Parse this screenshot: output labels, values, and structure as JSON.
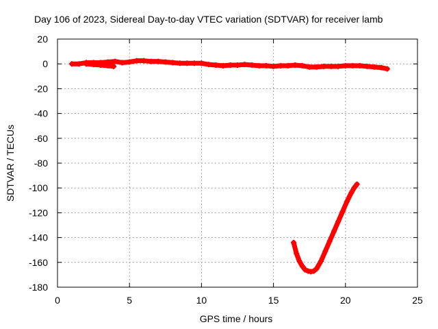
{
  "chart_data": {
    "type": "scatter",
    "title": "Day 106 of 2023, Sidereal Day-to-day VTEC variation (SDTVAR) for receiver lamb",
    "xlabel": "GPS time / hours",
    "ylabel": "SDTVAR / TECUs",
    "xlim": [
      0,
      25
    ],
    "ylim": [
      -180,
      20
    ],
    "xticks": [
      0,
      5,
      10,
      15,
      20,
      25
    ],
    "yticks": [
      20,
      0,
      -20,
      -40,
      -60,
      -80,
      -100,
      -120,
      -140,
      -160,
      -180
    ],
    "xtick_labels": [
      "0",
      "5",
      "10",
      "15",
      "20",
      "25"
    ],
    "ytick_labels": [
      "20",
      "0",
      "-20",
      "-40",
      "-60",
      "-80",
      "-100",
      "-120",
      "-140",
      "-160",
      "-180"
    ],
    "grid": true,
    "marker_color": "#ff0000",
    "series": [
      {
        "name": "near-zero trace",
        "x": [
          1.0,
          1.5,
          2.0,
          2.5,
          3.0,
          3.5,
          4.0,
          4.5,
          5.0,
          5.5,
          6.0,
          6.5,
          7.0,
          7.5,
          8.0,
          8.5,
          9.0,
          9.5,
          10.0,
          10.5,
          11.0,
          11.5,
          12.0,
          12.5,
          13.0,
          13.5,
          14.0,
          14.5,
          15.0,
          15.5,
          16.0,
          16.5,
          17.0,
          17.5,
          18.0,
          18.5,
          19.0,
          19.5,
          20.0,
          20.5,
          21.0,
          21.5,
          22.0,
          22.5,
          22.9
        ],
        "y": [
          0,
          0,
          1,
          1,
          1,
          1.5,
          2,
          1,
          1.5,
          2.5,
          2.5,
          2,
          2,
          1.5,
          1,
          0.5,
          0.5,
          0.5,
          0.5,
          -0.5,
          -1,
          -1.5,
          -1,
          -1,
          -0.5,
          -1,
          -1.5,
          -1.5,
          -2,
          -1.5,
          -1.5,
          -1,
          -1.5,
          -2.5,
          -2.5,
          -2,
          -2,
          -2,
          -1.5,
          -1.5,
          -1.5,
          -2,
          -2.5,
          -3,
          -4
        ]
      },
      {
        "name": "near-zero side segment",
        "x": [
          2.0,
          2.5,
          3.0,
          3.5,
          3.9
        ],
        "y": [
          0,
          -0.5,
          -1,
          -1.5,
          -2
        ]
      },
      {
        "name": "dip trace",
        "x": [
          16.4,
          16.6,
          16.8,
          17.0,
          17.2,
          17.4,
          17.6,
          17.8,
          18.0,
          18.3,
          18.6,
          18.9,
          19.2,
          19.5,
          19.8,
          20.1,
          20.4,
          20.6,
          20.8
        ],
        "y": [
          -144,
          -153,
          -159,
          -163,
          -166,
          -167,
          -167.5,
          -167,
          -165,
          -159,
          -151,
          -143,
          -135,
          -127,
          -119,
          -111,
          -104,
          -100,
          -97
        ]
      }
    ]
  }
}
